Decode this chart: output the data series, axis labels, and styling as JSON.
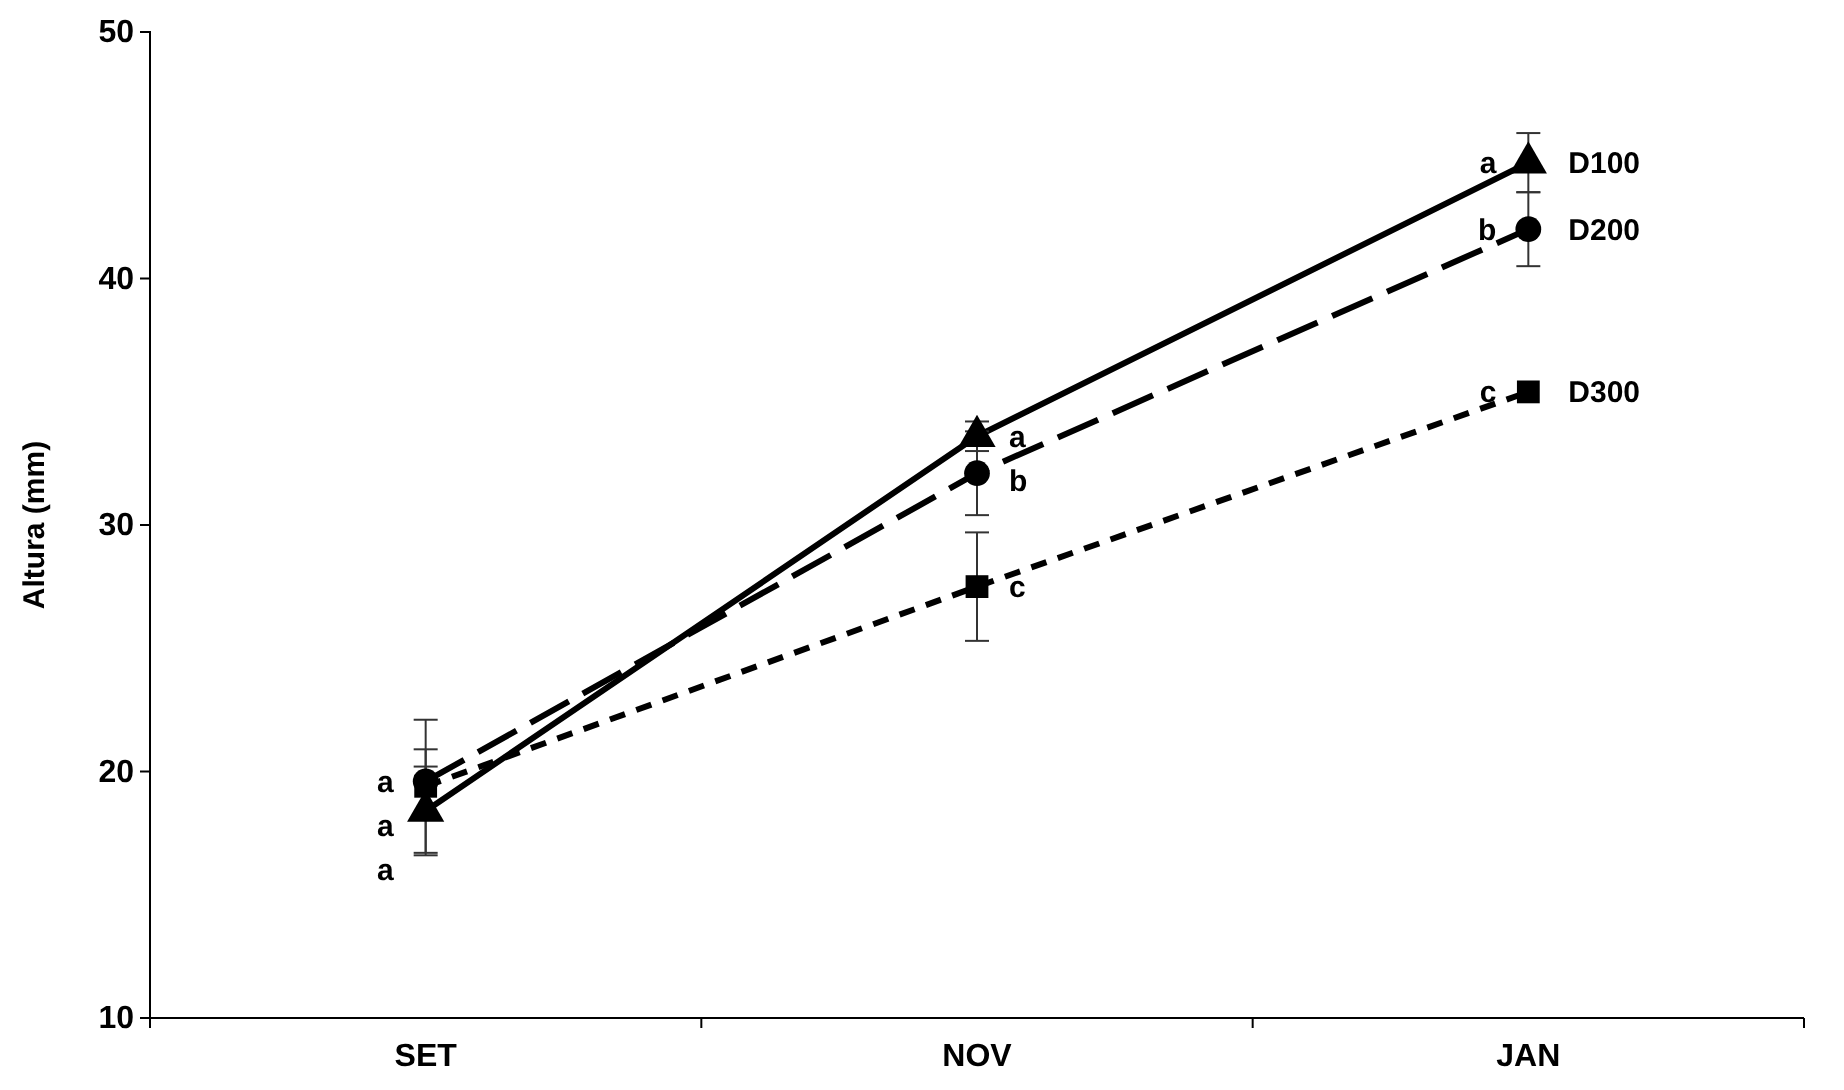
{
  "chart_data": {
    "type": "line",
    "ylabel": "Altura (mm)",
    "categories": [
      "SET",
      "NOV",
      "JAN"
    ],
    "ylim": [
      10,
      50
    ],
    "yticks": [
      10,
      20,
      30,
      40,
      50
    ],
    "grid": false,
    "series": [
      {
        "name": "D100",
        "color": "#000000",
        "marker": "triangle",
        "line_style": "solid",
        "values": [
          18.4,
          33.6,
          44.7
        ],
        "errors": [
          1.8,
          0.6,
          1.2
        ]
      },
      {
        "name": "D200",
        "color": "#000000",
        "marker": "circle",
        "line_style": "dashed",
        "values": [
          19.6,
          32.1,
          42.0
        ],
        "errors": [
          1.3,
          1.7,
          1.5
        ]
      },
      {
        "name": "D300",
        "color": "#000000",
        "marker": "square",
        "line_style": "dotted",
        "values": [
          19.4,
          27.5,
          35.4
        ],
        "errors": [
          2.7,
          2.2,
          null
        ]
      }
    ],
    "annotations": [
      {
        "text": "a",
        "x": "SET",
        "y": 19.6
      },
      {
        "text": "a",
        "x": "SET",
        "y": 19.4
      },
      {
        "text": "a",
        "x": "SET",
        "y": 18.4
      },
      {
        "text": "a",
        "x": "NOV",
        "y": 33.6
      },
      {
        "text": "b",
        "x": "NOV",
        "y": 32.1
      },
      {
        "text": "c",
        "x": "NOV",
        "y": 27.5
      },
      {
        "text": "a",
        "x": "JAN",
        "y": 44.7
      },
      {
        "text": "b",
        "x": "JAN",
        "y": 42.0
      },
      {
        "text": "c",
        "x": "JAN",
        "y": 35.4
      }
    ]
  }
}
